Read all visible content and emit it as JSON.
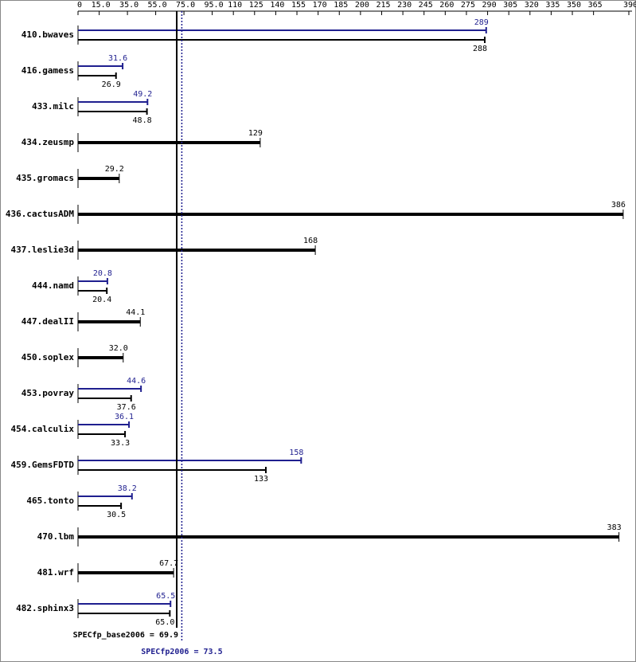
{
  "chart_data": {
    "type": "hbar-pair",
    "categories": [
      "410.bwaves",
      "416.gamess",
      "433.milc",
      "434.zeusmp",
      "435.gromacs",
      "436.cactusADM",
      "437.leslie3d",
      "444.namd",
      "447.dealII",
      "450.soplex",
      "453.povray",
      "454.calculix",
      "459.GemsFDTD",
      "465.tonto",
      "470.lbm",
      "481.wrf",
      "482.sphinx3"
    ],
    "series": [
      {
        "color": "#1f1f8f",
        "values": [
          289,
          31.6,
          49.2,
          null,
          null,
          null,
          null,
          20.8,
          null,
          null,
          44.6,
          36.1,
          158,
          38.2,
          null,
          null,
          65.5
        ],
        "value_labels": [
          "289",
          "31.6",
          "49.2",
          null,
          null,
          null,
          null,
          "20.8",
          null,
          null,
          "44.6",
          "36.1",
          "158",
          "38.2",
          null,
          null,
          "65.5"
        ]
      },
      {
        "color": "#000000",
        "values": [
          288,
          26.9,
          48.8,
          129,
          29.2,
          386,
          168,
          20.4,
          44.1,
          32.0,
          37.6,
          33.3,
          133,
          30.5,
          383,
          67.7,
          65.0
        ],
        "value_labels": [
          "288",
          "26.9",
          "48.8",
          "129",
          "29.2",
          "386",
          "168",
          "20.4",
          "44.1",
          "32.0",
          "37.6",
          "33.3",
          "133",
          "30.5",
          "383",
          "67.7",
          "65.0"
        ]
      }
    ],
    "xlim": [
      0,
      390
    ],
    "xticks": [
      0,
      {
        "value": 15,
        "label": "15.0"
      },
      {
        "value": 35,
        "label": "35.0"
      },
      {
        "value": 55,
        "label": "55.0"
      },
      {
        "value": 75,
        "label": "75.0"
      },
      {
        "value": 95,
        "label": "95.0"
      },
      110,
      125,
      140,
      155,
      170,
      185,
      200,
      215,
      230,
      245,
      260,
      275,
      290,
      305,
      320,
      335,
      350,
      365,
      390
    ],
    "summary": [
      {
        "label": "SPECfp_base2006 = 69.9",
        "value": 69.9,
        "color": "#000000"
      },
      {
        "label": "SPECfp2006 = 73.5",
        "value": 73.5,
        "color": "#1f1f8f"
      }
    ]
  }
}
